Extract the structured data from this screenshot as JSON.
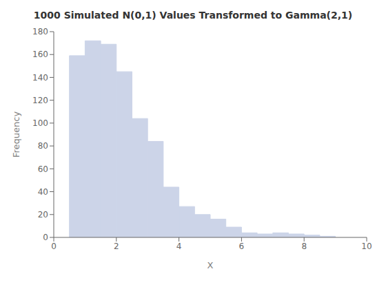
{
  "chart_data": {
    "type": "histogram",
    "title": "1000 Simulated N(0,1) Values Transformed to Gamma(2,1)",
    "xlabel": "X",
    "ylabel": "Frequency",
    "bins": [
      0.5,
      1.0,
      1.5,
      2.0,
      2.5,
      3.0,
      3.5,
      4.0,
      4.5,
      5.0,
      5.5,
      6.0,
      6.5,
      7.0,
      7.5,
      8.0,
      8.5,
      9.0
    ],
    "values": [
      159,
      172,
      169,
      145,
      104,
      84,
      44,
      27,
      20,
      16,
      9,
      4,
      3,
      4,
      3,
      2,
      1
    ],
    "color": "#ccd4e8",
    "xlim": [
      0,
      10
    ],
    "ylim": [
      0,
      180
    ],
    "xticks": [
      0,
      2,
      4,
      6,
      8,
      10
    ],
    "yticks": [
      0,
      20,
      40,
      60,
      80,
      100,
      120,
      140,
      160,
      180
    ],
    "grid": false
  }
}
